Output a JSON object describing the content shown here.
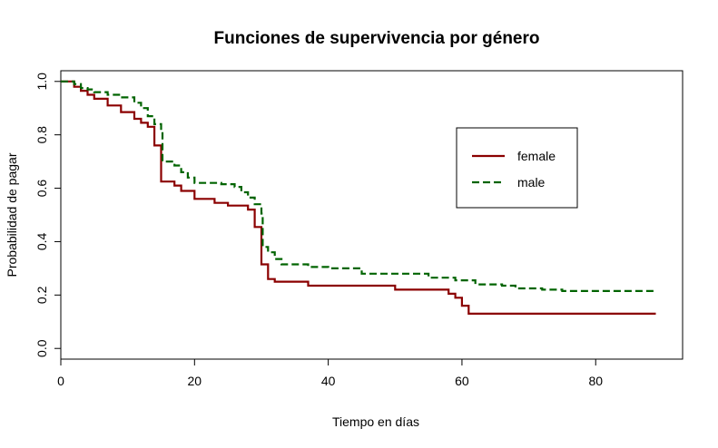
{
  "chart_data": {
    "type": "line",
    "title": "Funciones de supervivencia por género",
    "xlabel": "Tiempo en días",
    "ylabel": "Probabilidad de pagar",
    "xlim": [
      0,
      93
    ],
    "ylim": [
      -0.04,
      1.04
    ],
    "x_ticks": [
      "0",
      "20",
      "40",
      "60",
      "80"
    ],
    "y_ticks": [
      "0.0",
      "0.2",
      "0.4",
      "0.6",
      "0.8",
      "1.0"
    ],
    "grid": false,
    "legend_position": "top-right",
    "series": [
      {
        "name": "female",
        "color": "#8b0000",
        "style": "solid",
        "step": true,
        "points": [
          [
            0,
            1.0
          ],
          [
            2,
            0.98
          ],
          [
            3,
            0.965
          ],
          [
            4,
            0.95
          ],
          [
            5,
            0.935
          ],
          [
            7,
            0.91
          ],
          [
            9,
            0.885
          ],
          [
            11,
            0.86
          ],
          [
            12,
            0.845
          ],
          [
            13,
            0.83
          ],
          [
            14,
            0.76
          ],
          [
            15,
            0.625
          ],
          [
            17,
            0.61
          ],
          [
            18,
            0.59
          ],
          [
            20,
            0.56
          ],
          [
            23,
            0.545
          ],
          [
            25,
            0.535
          ],
          [
            28,
            0.52
          ],
          [
            29,
            0.455
          ],
          [
            30,
            0.315
          ],
          [
            31,
            0.26
          ],
          [
            32,
            0.25
          ],
          [
            37,
            0.235
          ],
          [
            50,
            0.22
          ],
          [
            58,
            0.205
          ],
          [
            59,
            0.19
          ],
          [
            60,
            0.16
          ],
          [
            61,
            0.13
          ],
          [
            89,
            0.13
          ]
        ]
      },
      {
        "name": "male",
        "color": "#006400",
        "style": "dashed",
        "step": true,
        "points": [
          [
            0,
            1.0
          ],
          [
            2,
            0.99
          ],
          [
            3,
            0.975
          ],
          [
            4,
            0.97
          ],
          [
            5,
            0.96
          ],
          [
            7,
            0.95
          ],
          [
            9,
            0.94
          ],
          [
            11,
            0.92
          ],
          [
            12,
            0.9
          ],
          [
            13,
            0.87
          ],
          [
            14,
            0.84
          ],
          [
            15,
            0.81
          ],
          [
            15.2,
            0.7
          ],
          [
            17,
            0.685
          ],
          [
            18,
            0.66
          ],
          [
            19,
            0.64
          ],
          [
            20,
            0.62
          ],
          [
            24,
            0.615
          ],
          [
            26,
            0.605
          ],
          [
            27,
            0.585
          ],
          [
            28,
            0.565
          ],
          [
            29,
            0.54
          ],
          [
            30,
            0.505
          ],
          [
            30.2,
            0.38
          ],
          [
            31,
            0.36
          ],
          [
            32,
            0.335
          ],
          [
            33,
            0.315
          ],
          [
            37,
            0.305
          ],
          [
            40,
            0.3
          ],
          [
            45,
            0.28
          ],
          [
            55,
            0.265
          ],
          [
            59,
            0.255
          ],
          [
            62,
            0.24
          ],
          [
            66,
            0.235
          ],
          [
            68,
            0.225
          ],
          [
            72,
            0.22
          ],
          [
            75,
            0.215
          ],
          [
            89,
            0.215
          ]
        ]
      }
    ]
  }
}
